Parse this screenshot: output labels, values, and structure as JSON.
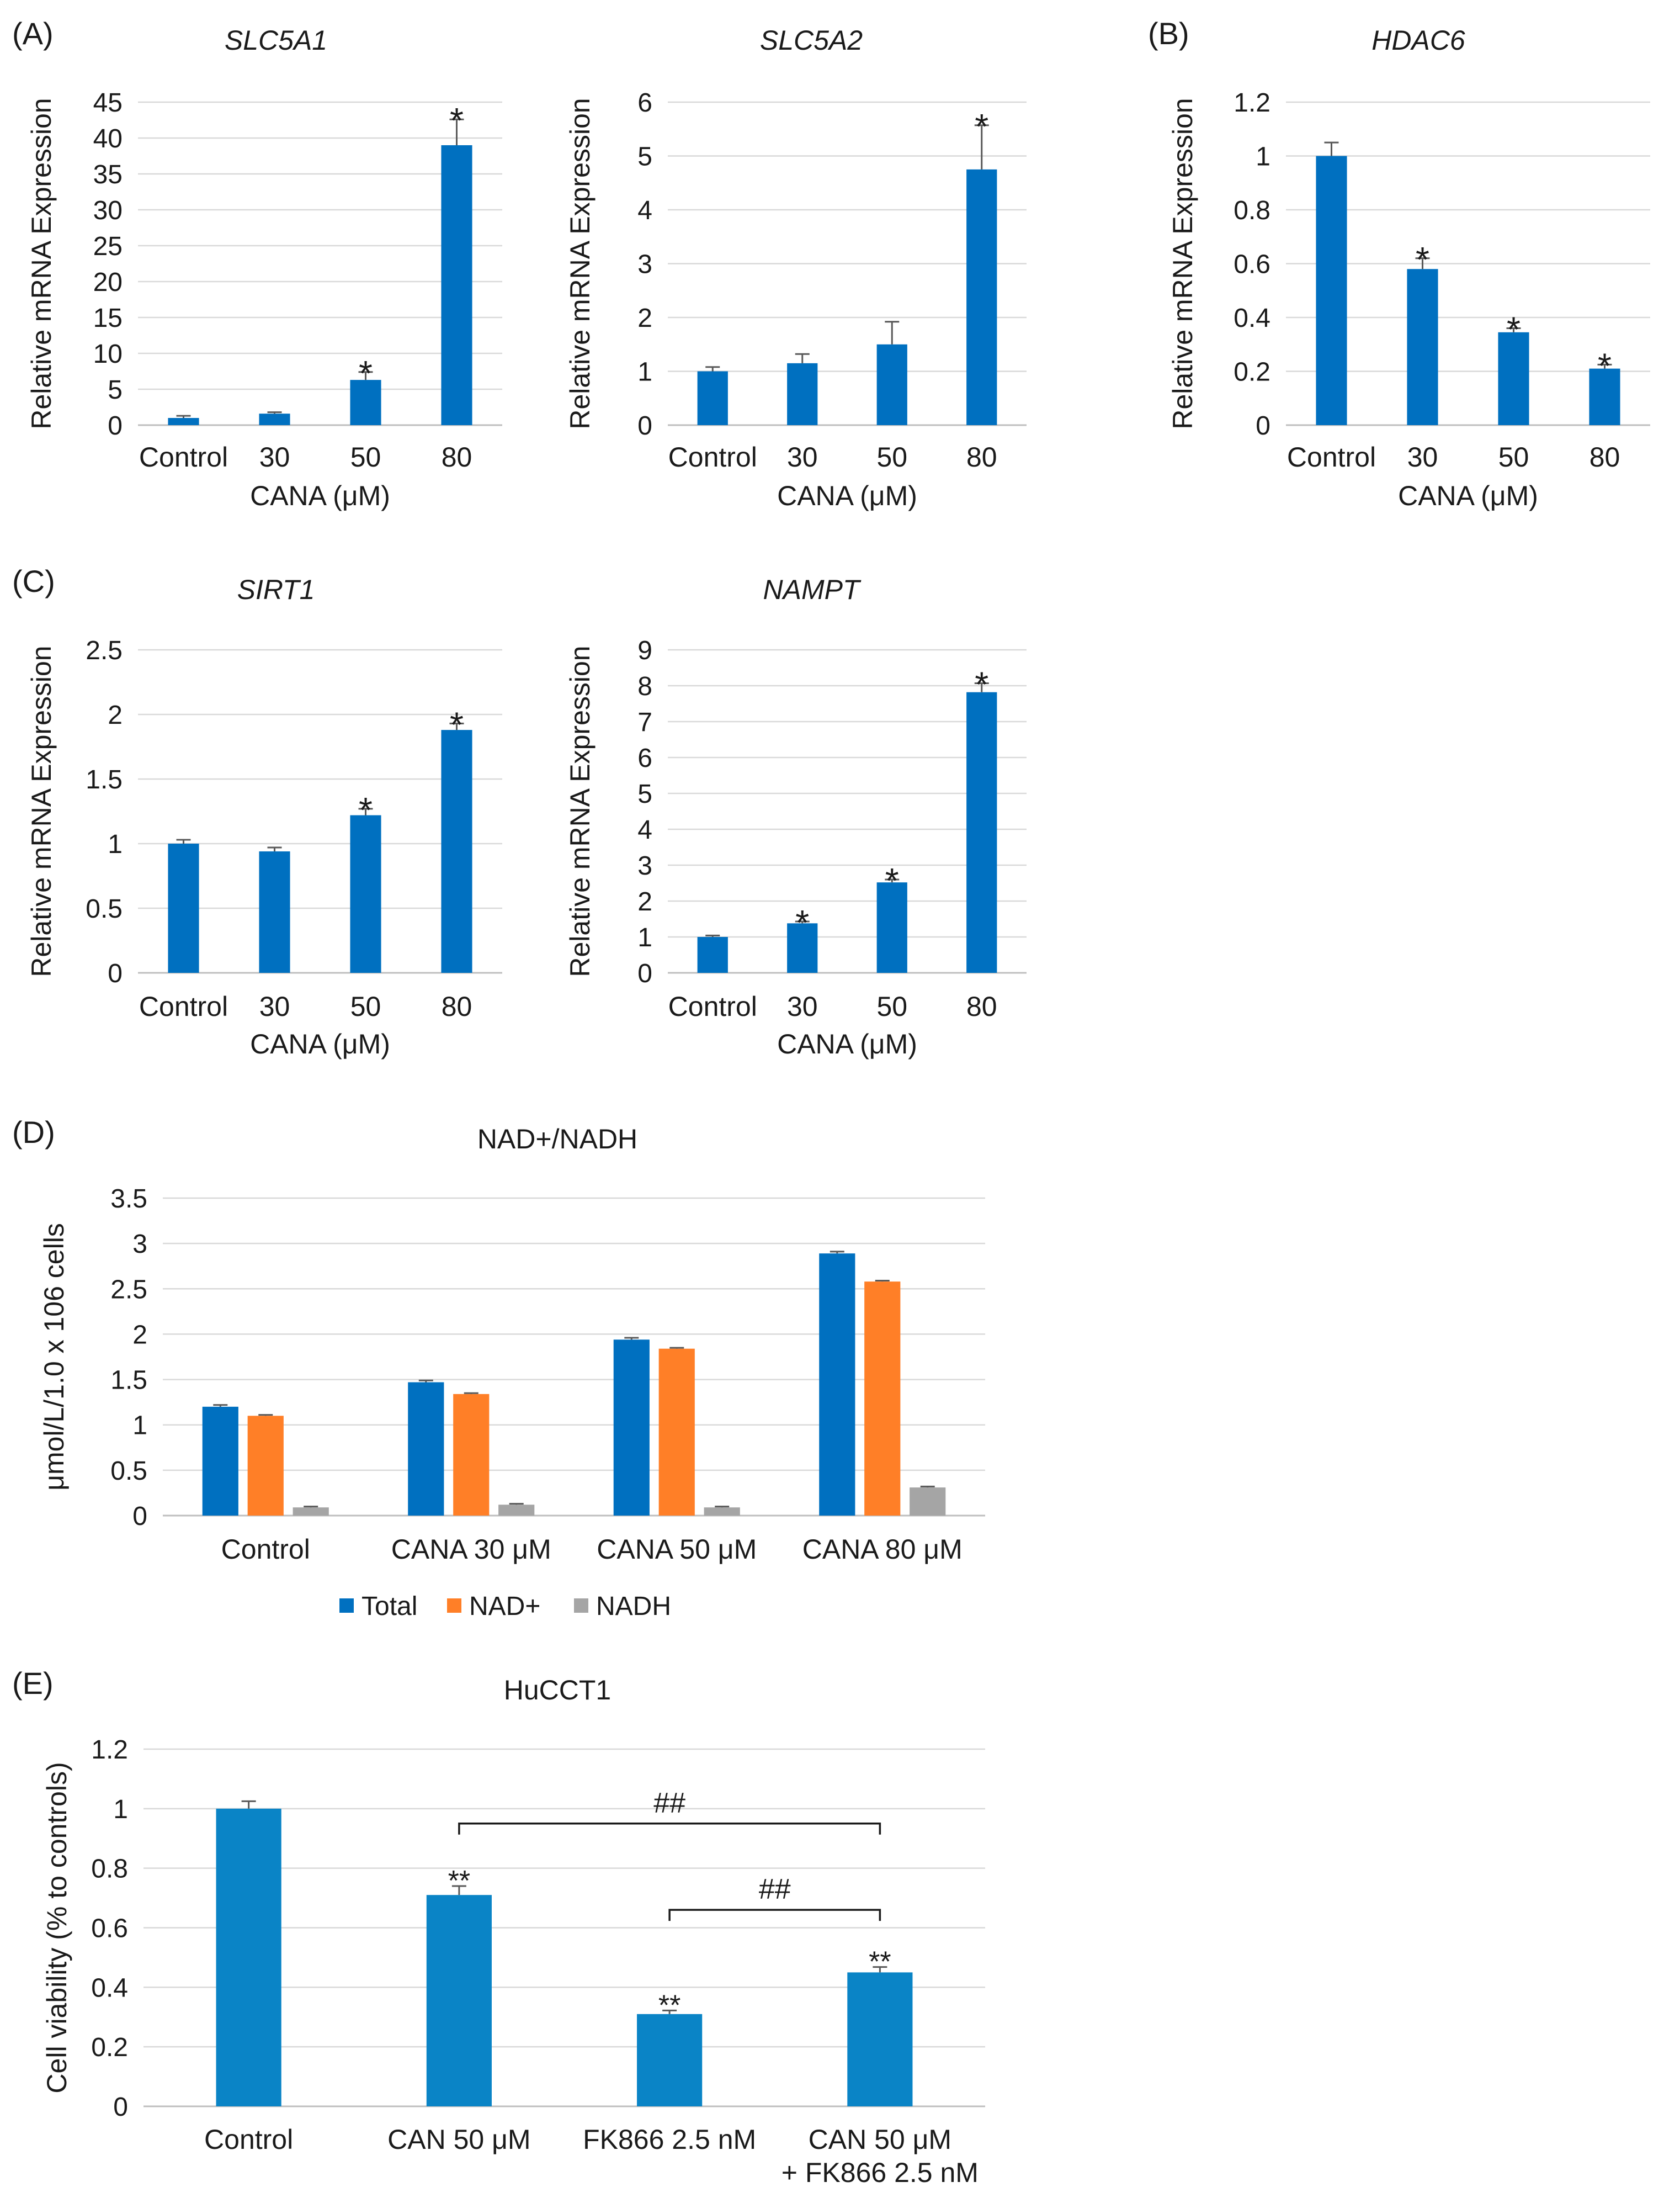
{
  "chart_data": [
    {
      "id": "A1",
      "panel_letter": "(A)",
      "type": "bar",
      "title": "SLC5A1",
      "title_italic": true,
      "xlabel": "CANA (μM)",
      "ylabel": "Relative mRNA Expression",
      "ylim": [
        0,
        45
      ],
      "yticks": [
        "0",
        "5",
        "10",
        "15",
        "20",
        "25",
        "30",
        "35",
        "40",
        "45"
      ],
      "categories": [
        "Control",
        "30",
        "50",
        "80"
      ],
      "series": [
        {
          "name": "Expression",
          "color": "#0070c0",
          "values": [
            1.0,
            1.6,
            6.3,
            39.0
          ],
          "errors": [
            0.3,
            0.2,
            1.1,
            3.6
          ]
        }
      ],
      "annotations": [
        "",
        "",
        "*",
        "*"
      ]
    },
    {
      "id": "A2",
      "panel_letter": "",
      "type": "bar",
      "title": "SLC5A2",
      "title_italic": true,
      "xlabel": "CANA (μM)",
      "ylabel": "Relative mRNA Expression",
      "ylim": [
        0,
        6
      ],
      "yticks": [
        "0",
        "1",
        "2",
        "3",
        "4",
        "5",
        "6"
      ],
      "categories": [
        "Control",
        "30",
        "50",
        "80"
      ],
      "series": [
        {
          "name": "Expression",
          "color": "#0070c0",
          "values": [
            1.0,
            1.15,
            1.5,
            4.75
          ],
          "errors": [
            0.08,
            0.17,
            0.42,
            0.82
          ]
        }
      ],
      "annotations": [
        "",
        "",
        "",
        "*"
      ]
    },
    {
      "id": "B",
      "panel_letter": "(B)",
      "type": "bar",
      "title": "HDAC6",
      "title_italic": true,
      "xlabel": "CANA (μM)",
      "ylabel": "Relative mRNA Expression",
      "ylim": [
        0,
        1.2
      ],
      "yticks": [
        "0",
        "0.2",
        "0.4",
        "0.6",
        "0.8",
        "1",
        "1.2"
      ],
      "categories": [
        "Control",
        "30",
        "50",
        "80"
      ],
      "series": [
        {
          "name": "Expression",
          "color": "#0070c0",
          "values": [
            1.0,
            0.58,
            0.345,
            0.21
          ],
          "errors": [
            0.05,
            0.04,
            0.015,
            0.015
          ]
        }
      ],
      "annotations": [
        "",
        "*",
        "*",
        "*"
      ]
    },
    {
      "id": "C1",
      "panel_letter": "(C)",
      "type": "bar",
      "title": "SIRT1",
      "title_italic": true,
      "xlabel": "CANA (μM)",
      "ylabel": "Relative mRNA Expression",
      "ylim": [
        0,
        2.5
      ],
      "yticks": [
        "0",
        "0.5",
        "1",
        "1.5",
        "2",
        "2.5"
      ],
      "categories": [
        "Control",
        "30",
        "50",
        "80"
      ],
      "series": [
        {
          "name": "Expression",
          "color": "#0070c0",
          "values": [
            1.0,
            0.94,
            1.22,
            1.88
          ],
          "errors": [
            0.03,
            0.03,
            0.05,
            0.05
          ]
        }
      ],
      "annotations": [
        "",
        "",
        "*",
        "*"
      ]
    },
    {
      "id": "C2",
      "panel_letter": "",
      "type": "bar",
      "title": "NAMPT",
      "title_italic": true,
      "xlabel": "CANA (μM)",
      "ylabel": "Relative mRNA Expression",
      "ylim": [
        0,
        9
      ],
      "yticks": [
        "0",
        "1",
        "2",
        "3",
        "4",
        "5",
        "6",
        "7",
        "8",
        "9"
      ],
      "categories": [
        "Control",
        "30",
        "50",
        "80"
      ],
      "series": [
        {
          "name": "Expression",
          "color": "#0070c0",
          "values": [
            1.0,
            1.38,
            2.52,
            7.82
          ],
          "errors": [
            0.04,
            0.05,
            0.08,
            0.25
          ]
        }
      ],
      "annotations": [
        "",
        "*",
        "*",
        "*"
      ]
    },
    {
      "id": "D",
      "panel_letter": "(D)",
      "type": "bar",
      "title": "NAD+/NADH",
      "title_italic": false,
      "xlabel": "",
      "ylabel": "μmol/L/1.0 x 106 cells",
      "ylim": [
        0,
        3.5
      ],
      "yticks": [
        "0",
        "0.5",
        "1",
        "1.5",
        "2",
        "2.5",
        "3",
        "3.5"
      ],
      "categories": [
        "Control",
        "CANA 30 μM",
        "CANA 50 μM",
        "CANA 80 μM"
      ],
      "series": [
        {
          "name": "Total",
          "color": "#0070c0",
          "values": [
            1.2,
            1.47,
            1.94,
            2.89
          ],
          "errors": [
            0.02,
            0.02,
            0.02,
            0.02
          ]
        },
        {
          "name": "NAD+",
          "color": "#ff7f27",
          "values": [
            1.1,
            1.34,
            1.84,
            2.58
          ],
          "errors": [
            0.01,
            0.01,
            0.01,
            0.01
          ]
        },
        {
          "name": "NADH",
          "color": "#a5a5a5",
          "values": [
            0.09,
            0.12,
            0.09,
            0.31
          ],
          "errors": [
            0.01,
            0.01,
            0.01,
            0.01
          ]
        }
      ],
      "legend_position": "bottom-center"
    },
    {
      "id": "E",
      "panel_letter": "(E)",
      "type": "bar",
      "title": "HuCCT1",
      "title_italic": false,
      "xlabel": "",
      "ylabel": "Cell viability (% to controls)",
      "ylim": [
        0,
        1.2
      ],
      "yticks": [
        "0",
        "0.2",
        "0.4",
        "0.6",
        "0.8",
        "1",
        "1.2"
      ],
      "categories": [
        "Control",
        "CAN 50 μM",
        "FK866 2.5 nM",
        "CAN 50 μM\n+ FK866 2.5 nM"
      ],
      "series": [
        {
          "name": "Viability",
          "color": "#0a84c6",
          "values": [
            1.0,
            0.71,
            0.31,
            0.45
          ],
          "errors": [
            0.025,
            0.03,
            0.012,
            0.018
          ]
        }
      ],
      "annotations": [
        "",
        "**",
        "**",
        "**"
      ],
      "comparisons": [
        {
          "from": 1,
          "to": 3,
          "label": "##",
          "y": 0.95
        },
        {
          "from": 2,
          "to": 3,
          "label": "##",
          "y": 0.66
        }
      ]
    }
  ]
}
